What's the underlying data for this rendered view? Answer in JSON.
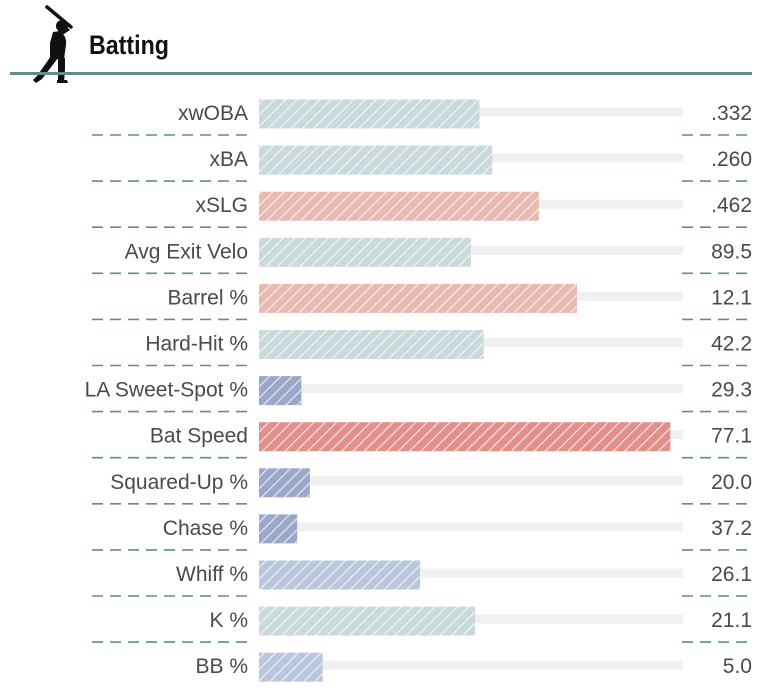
{
  "header": {
    "title": "Batting",
    "icon": "batter-silhouette-icon"
  },
  "colors": {
    "accent_rule": "#5e8f8a",
    "track": "#eef1f1",
    "divider": "#5e8f8a",
    "text": "#4a4a4a",
    "tier_neutral": "#c9d9dc",
    "tier_light_red": "#e8b9b0",
    "tier_red": "#e08f8b",
    "tier_blue": "#9aa7c8",
    "tier_light_blue": "#bac6dc"
  },
  "chart_data": {
    "type": "bar",
    "orientation": "horizontal",
    "categories": [
      "xwOBA",
      "xBA",
      "xSLG",
      "Avg Exit Velo",
      "Barrel %",
      "Hard-Hit %",
      "LA Sweet-Spot %",
      "Bat Speed",
      "Squared-Up %",
      "Chase %",
      "Whiff %",
      "K %",
      "BB %"
    ],
    "value_labels": [
      ".332",
      ".260",
      ".462",
      "89.5",
      "12.1",
      "42.2",
      "29.3",
      "77.1",
      "20.0",
      "37.2",
      "26.1",
      "21.1",
      "5.0"
    ],
    "values": [
      52,
      55,
      66,
      50,
      75,
      53,
      10,
      97,
      12,
      9,
      38,
      51,
      15
    ],
    "value_units": "percentile (estimated from bar length)",
    "xlim": [
      0,
      100
    ],
    "tiers": [
      "neutral",
      "neutral",
      "light_red",
      "neutral",
      "light_red",
      "neutral",
      "blue",
      "red",
      "blue",
      "blue",
      "light_blue",
      "neutral",
      "light_blue"
    ],
    "grid": false,
    "legend": "none"
  }
}
